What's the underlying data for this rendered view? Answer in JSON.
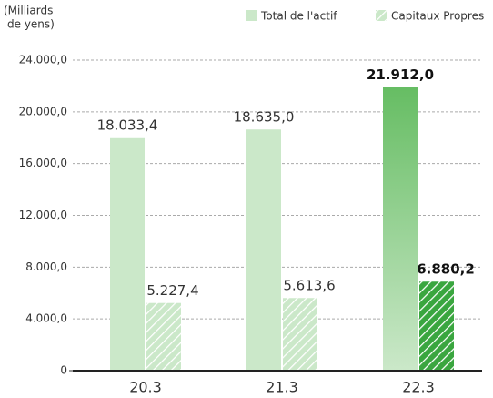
{
  "chart_data": {
    "type": "bar",
    "y_label": [
      "(Milliards",
      "de yens)"
    ],
    "categories": [
      "20.3",
      "21.3",
      "22.3"
    ],
    "highlight_index": 2,
    "series": [
      {
        "name": "Total de l'actif",
        "color": "#cbe8c9",
        "highlight_color": "#66bd63",
        "hatched": false,
        "values": [
          18033.4,
          18635.0,
          21912.0
        ],
        "value_labels": [
          "18.033,4",
          "18.635,0",
          "21.912,0"
        ]
      },
      {
        "name": "Capitaux Propres",
        "color": "#cbe8c9",
        "highlight_color": "#3aa63f",
        "hatched": true,
        "values": [
          5227.4,
          5613.6,
          6880.2
        ],
        "value_labels": [
          "5.227,4",
          "5.613,6",
          "6.880,2"
        ]
      }
    ],
    "ylim": [
      0,
      24000
    ],
    "yticks": [
      0,
      {
        "value": 4000,
        "label": "4.000,0"
      },
      {
        "value": 8000,
        "label": "8.000,0"
      },
      {
        "value": 12000,
        "label": "12.000,0"
      },
      {
        "value": 16000,
        "label": "16.000,0"
      },
      {
        "value": 20000,
        "label": "20.000,0"
      },
      {
        "value": 24000,
        "label": "24.000,0"
      }
    ],
    "grid": true
  }
}
